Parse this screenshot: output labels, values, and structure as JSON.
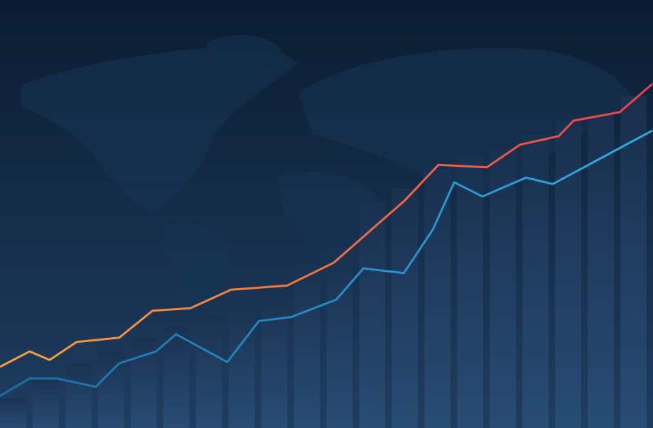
{
  "chart_data": {
    "type": "line",
    "title": "",
    "xlabel": "",
    "ylabel": "",
    "xlim": [
      0,
      20
    ],
    "ylim": [
      0,
      100
    ],
    "grid": false,
    "legend": "none",
    "background": {
      "top": "#0b1c31",
      "bottom": "#1f3d60",
      "map_color": "#163454"
    },
    "bars": {
      "values": [
        7.0,
        11.6,
        15.1,
        17.9,
        21.2,
        23.5,
        26.5,
        30.0,
        32.8,
        38.3,
        42.0,
        52.7,
        56.0,
        61.0,
        63.5,
        64.8,
        68.5,
        71.8,
        73.1,
        77.6
      ],
      "color_top": "#1a3150",
      "color_bottom": "#2a4f78"
    },
    "series": [
      {
        "color_start": "#f2a23c",
        "color_end": "#e8404c",
        "x": [
          0,
          0.91,
          1.52,
          2.35,
          3.65,
          4.67,
          5.83,
          7.07,
          8.8,
          10.22,
          11.52,
          12.39,
          13.43,
          14.91,
          15.93,
          17.11,
          17.57,
          18.98,
          19.98
        ],
        "values": [
          14.3,
          17.9,
          15.9,
          20.1,
          21.1,
          27.4,
          28.0,
          32.3,
          33.3,
          38.6,
          47.3,
          53.1,
          61.5,
          60.9,
          66.2,
          68.2,
          71.8,
          73.8,
          80.4
        ]
      },
      {
        "color_start": "#1a6ea3",
        "color_end": "#2fa9e2",
        "x": [
          0,
          0.91,
          1.74,
          2.93,
          3.65,
          4.78,
          5.39,
          6.96,
          7.93,
          8.91,
          10.3,
          11.13,
          12.37,
          13.26,
          13.91,
          14.78,
          16.11,
          16.93,
          19.98
        ],
        "values": [
          7.5,
          11.6,
          11.6,
          9.6,
          15.1,
          17.9,
          21.9,
          15.4,
          25.0,
          25.9,
          30.0,
          37.3,
          36.2,
          46.4,
          57.4,
          54.1,
          58.5,
          57.0,
          69.5
        ]
      }
    ]
  }
}
